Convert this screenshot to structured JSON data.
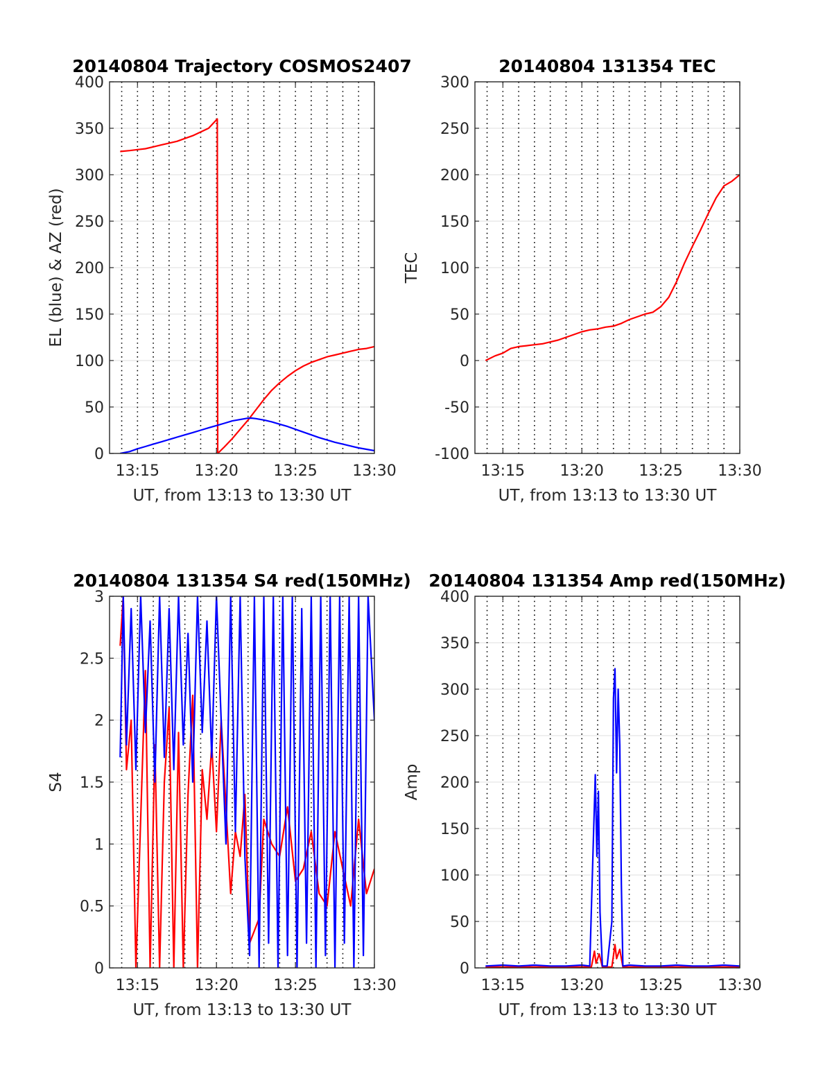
{
  "chart_data": [
    {
      "type": "line",
      "title": "20140804 Trajectory COSMOS2407",
      "xlabel": "UT, from 13:13 to 13:30 UT",
      "ylabel": "EL (blue) & AZ (red)",
      "xlim": [
        13.23,
        30.0
      ],
      "ylim": [
        0,
        400
      ],
      "xticks": [
        15,
        20,
        25,
        30
      ],
      "xtick_labels": [
        "13:15",
        "13:20",
        "13:25",
        "13:30"
      ],
      "yticks": [
        0,
        50,
        100,
        150,
        200,
        250,
        300,
        350,
        400
      ],
      "ytick_labels": [
        "0",
        "50",
        "100",
        "150",
        "200",
        "250",
        "300",
        "350",
        "400"
      ],
      "grid": "dotted",
      "series": [
        {
          "color": "#ff0000",
          "x": [
            13.9,
            14.5,
            15.0,
            15.5,
            16.0,
            16.5,
            17.0,
            17.5,
            18.0,
            18.5,
            19.0,
            19.5,
            20.05,
            20.08,
            20.5,
            21.0,
            21.5,
            22.0,
            22.5,
            23.0,
            23.5,
            24.0,
            24.5,
            25.0,
            25.5,
            26.0,
            26.5,
            27.0,
            27.5,
            28.0,
            28.5,
            29.0,
            29.5,
            30.0
          ],
          "y": [
            325,
            326,
            327,
            328,
            330,
            332,
            334,
            336,
            339,
            342,
            346,
            350,
            360,
            0,
            7,
            16,
            26,
            36,
            47,
            58,
            68,
            76,
            83,
            89,
            94,
            98,
            101,
            104,
            106,
            108,
            110,
            112,
            113,
            115
          ]
        },
        {
          "color": "#0000ff",
          "x": [
            13.9,
            14.5,
            15.0,
            15.5,
            16.0,
            16.5,
            17.0,
            17.5,
            18.0,
            18.5,
            19.0,
            19.5,
            20.0,
            20.5,
            21.0,
            21.5,
            22.0,
            22.25,
            22.5,
            23.0,
            23.5,
            24.0,
            24.5,
            25.0,
            25.5,
            26.0,
            26.5,
            27.0,
            27.5,
            28.0,
            28.5,
            29.0,
            29.5,
            30.0
          ],
          "y": [
            0,
            2,
            5,
            7.5,
            10,
            12.5,
            15,
            17.5,
            20,
            22.5,
            25,
            27.5,
            30,
            32.5,
            35,
            36.5,
            38,
            38,
            37.5,
            36,
            34,
            31.5,
            29,
            26,
            23,
            20,
            17,
            14.5,
            12,
            10,
            8,
            6,
            4.5,
            3
          ]
        }
      ]
    },
    {
      "type": "line",
      "title": "20140804 131354 TEC",
      "xlabel": "UT, from 13:13 to 13:30 UT",
      "ylabel": "TEC",
      "xlim": [
        13.23,
        30.0
      ],
      "ylim": [
        -100,
        300
      ],
      "xticks": [
        15,
        20,
        25,
        30
      ],
      "xtick_labels": [
        "13:15",
        "13:20",
        "13:25",
        "13:30"
      ],
      "yticks": [
        -100,
        -50,
        0,
        50,
        100,
        150,
        200,
        250,
        300
      ],
      "ytick_labels": [
        "-100",
        "-50",
        "0",
        "50",
        "100",
        "150",
        "200",
        "250",
        "300"
      ],
      "grid": "dotted",
      "series": [
        {
          "color": "#ff0000",
          "x": [
            13.9,
            14.5,
            15.0,
            15.5,
            16.0,
            16.5,
            17.0,
            17.5,
            18.0,
            18.5,
            19.0,
            19.5,
            20.0,
            20.5,
            21.0,
            21.5,
            22.0,
            22.5,
            23.0,
            23.5,
            24.0,
            24.5,
            25.0,
            25.5,
            26.0,
            26.5,
            27.0,
            27.5,
            28.0,
            28.5,
            29.0,
            29.5,
            30.0
          ],
          "y": [
            0,
            5,
            8,
            13,
            15,
            16,
            17,
            18,
            20,
            22,
            25,
            28,
            31,
            33,
            34,
            36,
            37,
            40,
            44,
            47,
            50,
            52,
            58,
            68,
            85,
            105,
            123,
            140,
            158,
            175,
            188,
            193,
            200
          ]
        }
      ]
    },
    {
      "type": "line",
      "title": "20140804 131354 S4 red(150MHz)",
      "xlabel": "UT, from 13:13 to 13:30 UT",
      "ylabel": "S4",
      "xlim": [
        13.23,
        30.0
      ],
      "ylim": [
        0,
        3
      ],
      "xticks": [
        15,
        20,
        25,
        30
      ],
      "xtick_labels": [
        "13:15",
        "13:20",
        "13:25",
        "13:30"
      ],
      "yticks": [
        0,
        0.5,
        1,
        1.5,
        2,
        2.5,
        3
      ],
      "ytick_labels": [
        "0",
        "0.5",
        "1",
        "1.5",
        "2",
        "2.5",
        "3"
      ],
      "grid": "dotted",
      "series": [
        {
          "color": "#ff0000",
          "x": [
            13.9,
            14.1,
            14.3,
            14.6,
            14.9,
            15.2,
            15.5,
            15.8,
            16.1,
            16.4,
            16.7,
            17.0,
            17.3,
            17.6,
            17.9,
            18.2,
            18.5,
            18.8,
            19.1,
            19.4,
            19.7,
            20.0,
            20.3,
            20.6,
            20.9,
            21.2,
            21.5,
            21.8,
            22.1,
            22.4,
            22.7,
            23.0,
            23.5,
            24.0,
            24.5,
            25.0,
            25.5,
            26.0,
            26.5,
            27.0,
            27.5,
            28.0,
            28.5,
            29.0,
            29.5,
            30.0
          ],
          "y": [
            2.6,
            3.0,
            1.6,
            2.0,
            0,
            1.2,
            2.4,
            0,
            1.8,
            0,
            1.5,
            2.1,
            0,
            1.9,
            0,
            1.4,
            2.2,
            0,
            1.6,
            1.2,
            1.8,
            1.1,
            2.0,
            1.3,
            0.6,
            1.1,
            0.9,
            1.4,
            0.2,
            0.3,
            0.4,
            1.2,
            1.0,
            0.9,
            1.3,
            0.7,
            0.8,
            1.1,
            0.6,
            0.5,
            1.1,
            0.8,
            0.5,
            1.2,
            0.6,
            0.8
          ]
        },
        {
          "color": "#0000ff",
          "x": [
            13.9,
            14.1,
            14.3,
            14.6,
            14.9,
            15.2,
            15.5,
            15.8,
            16.1,
            16.4,
            16.7,
            17.0,
            17.3,
            17.6,
            17.9,
            18.2,
            18.5,
            18.8,
            19.1,
            19.4,
            19.7,
            20.0,
            20.3,
            20.6,
            20.9,
            21.2,
            21.5,
            21.8,
            22.1,
            22.4,
            22.7,
            23.0,
            23.3,
            23.6,
            23.9,
            24.2,
            24.5,
            24.8,
            25.1,
            25.4,
            25.7,
            26.0,
            26.3,
            26.6,
            26.9,
            27.2,
            27.5,
            27.8,
            28.1,
            28.4,
            28.7,
            29.0,
            29.3,
            29.6,
            30.0
          ],
          "y": [
            1.7,
            3.0,
            1.8,
            2.9,
            1.6,
            3.0,
            1.9,
            2.8,
            1.5,
            3.0,
            1.7,
            2.9,
            1.6,
            3.0,
            1.8,
            2.7,
            1.5,
            3.0,
            1.9,
            2.8,
            1.7,
            3.0,
            2.0,
            1.0,
            3.0,
            1.1,
            3.0,
            0.9,
            0.1,
            3.0,
            0,
            3.0,
            0.2,
            3.0,
            0,
            3.0,
            0.1,
            3.0,
            0,
            2.9,
            0.2,
            3.0,
            0,
            3.0,
            0.1,
            3.0,
            0,
            3.0,
            0.2,
            3.0,
            0,
            3.0,
            0.1,
            3.0,
            2.0
          ]
        }
      ]
    },
    {
      "type": "line",
      "title": "20140804 131354 Amp red(150MHz)",
      "xlabel": "UT, from 13:13 to 13:30 UT",
      "ylabel": "Amp",
      "xlim": [
        13.23,
        30.0
      ],
      "ylim": [
        0,
        400
      ],
      "xticks": [
        15,
        20,
        25,
        30
      ],
      "xtick_labels": [
        "13:15",
        "13:20",
        "13:25",
        "13:30"
      ],
      "yticks": [
        0,
        50,
        100,
        150,
        200,
        250,
        300,
        350,
        400
      ],
      "ytick_labels": [
        "0",
        "50",
        "100",
        "150",
        "200",
        "250",
        "300",
        "350",
        "400"
      ],
      "grid": "dotted",
      "series": [
        {
          "color": "#ff0000",
          "x": [
            13.9,
            20.6,
            20.8,
            20.9,
            21.1,
            21.3,
            21.9,
            22.1,
            22.2,
            22.4,
            22.6,
            30.0
          ],
          "y": [
            1,
            1,
            18,
            5,
            15,
            1,
            1,
            25,
            10,
            20,
            1,
            1
          ]
        },
        {
          "color": "#0000ff",
          "x": [
            13.9,
            15.0,
            16.0,
            17.0,
            18.0,
            19.0,
            20.0,
            20.5,
            20.75,
            20.85,
            20.95,
            21.05,
            21.15,
            21.3,
            21.6,
            21.9,
            22.0,
            22.1,
            22.2,
            22.3,
            22.4,
            22.5,
            22.6,
            23.0,
            24.0,
            25.0,
            26.0,
            27.0,
            28.0,
            29.0,
            30.0
          ],
          "y": [
            2,
            3,
            2,
            3,
            2,
            2,
            3,
            2,
            150,
            208,
            120,
            190,
            60,
            2,
            2,
            50,
            290,
            322,
            210,
            300,
            240,
            90,
            2,
            3,
            2,
            2,
            3,
            2,
            2,
            3,
            2
          ]
        }
      ]
    }
  ]
}
